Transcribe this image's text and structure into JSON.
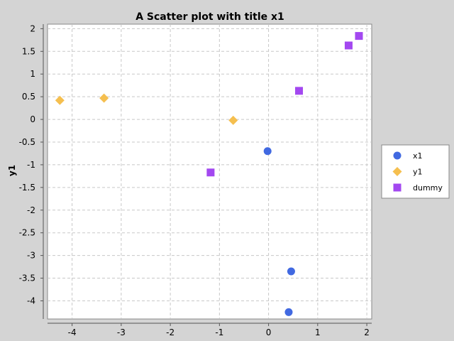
{
  "chart_data": {
    "type": "scatter",
    "title": "A Scatter plot with title x1",
    "xlabel": "",
    "ylabel": "y1",
    "xlim": [
      -4.5,
      2.1
    ],
    "ylim": [
      -4.4,
      2.1
    ],
    "x_ticks": [
      -4,
      -3,
      -2,
      -1,
      0,
      1,
      2
    ],
    "y_ticks": [
      2,
      1.5,
      1,
      0.5,
      0,
      -0.5,
      -1,
      -1.5,
      -2,
      -2.5,
      -3,
      -3.5,
      -4
    ],
    "grid": true,
    "legend_position": "right",
    "series": [
      {
        "name": "x1",
        "marker": "circle",
        "color": "#4169e1",
        "points": [
          {
            "x": -0.02,
            "y": -0.7
          },
          {
            "x": 0.46,
            "y": -3.35
          },
          {
            "x": 0.41,
            "y": -4.25
          }
        ]
      },
      {
        "name": "y1",
        "marker": "diamond",
        "color": "#f5bf4f",
        "points": [
          {
            "x": -4.25,
            "y": 0.42
          },
          {
            "x": -3.35,
            "y": 0.47
          },
          {
            "x": -0.72,
            "y": -0.02
          }
        ]
      },
      {
        "name": "dummy",
        "marker": "square",
        "color": "#a348f0",
        "points": [
          {
            "x": -1.18,
            "y": -1.17
          },
          {
            "x": 0.62,
            "y": 0.63
          },
          {
            "x": 1.63,
            "y": 1.63
          },
          {
            "x": 1.84,
            "y": 1.84
          }
        ]
      }
    ]
  }
}
